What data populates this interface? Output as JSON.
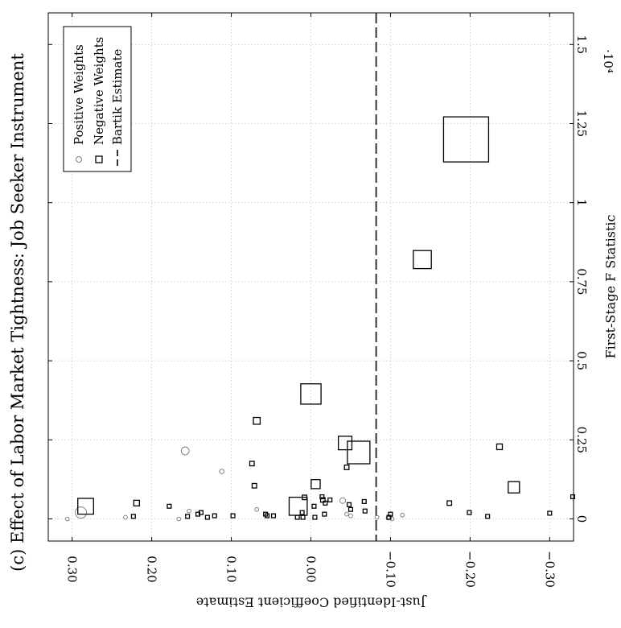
{
  "chart_data": {
    "type": "scatter",
    "orientation": "rotated-90",
    "title": "(c) Effect of Labor Market Tightness: Job Seeker Instrument",
    "xlabel": "First-Stage F Statistic",
    "ylabel": "Just-Identified Coefficient Estimate",
    "x_exponent_label": "·10⁴",
    "x_multiplier": 10000,
    "xlim": [
      -0.07,
      1.6
    ],
    "ylim": [
      -0.33,
      0.33
    ],
    "x_ticks": [
      0,
      0.25,
      0.5,
      0.75,
      1,
      1.25,
      1.5
    ],
    "x_tick_labels": [
      "0",
      "0.25",
      "0.5",
      "0.75",
      "1",
      "1.25",
      "1.5"
    ],
    "y_ticks": [
      0.3,
      0.2,
      0.1,
      0.0,
      -0.1,
      -0.2,
      -0.3
    ],
    "y_tick_labels": [
      "0.30",
      "0.20",
      "0.10",
      "0.00",
      "−0.10",
      "−0.20",
      "−0.30"
    ],
    "grid": true,
    "legend_position": "top-left",
    "legend": [
      "Positive Weights",
      "Negative Weights",
      "Bartik Estimate"
    ],
    "bartik_estimate": -0.082,
    "series": [
      {
        "name": "Positive Weights",
        "marker": "circle",
        "color": "#808080",
        "points": [
          {
            "x": 0.02,
            "y": 0.289,
            "size": 0.05
          },
          {
            "x": 0.215,
            "y": 0.158,
            "size": 0.035
          },
          {
            "x": 0.15,
            "y": 0.112,
            "size": 0.02
          },
          {
            "x": 0.058,
            "y": -0.04,
            "size": 0.025
          },
          {
            "x": 0.0,
            "y": 0.166,
            "size": 0.015
          },
          {
            "x": 0.005,
            "y": 0.233,
            "size": 0.01
          },
          {
            "x": 0.0,
            "y": 0.306,
            "size": 0.008
          },
          {
            "x": 0.025,
            "y": 0.153,
            "size": 0.008
          },
          {
            "x": 0.03,
            "y": 0.068,
            "size": 0.008
          },
          {
            "x": 0.01,
            "y": -0.05,
            "size": 0.008
          },
          {
            "x": 0.005,
            "y": -0.083,
            "size": 0.008
          },
          {
            "x": 0.015,
            "y": -0.045,
            "size": 0.006
          },
          {
            "x": 0.012,
            "y": -0.115,
            "size": 0.006
          },
          {
            "x": 0.003,
            "y": -0.097,
            "size": 0.006
          },
          {
            "x": 0.0,
            "y": -0.102,
            "size": 0.006
          }
        ]
      },
      {
        "name": "Negative Weights",
        "marker": "square",
        "color": "#000000",
        "points": [
          {
            "x": 1.2,
            "y": -0.195,
            "size": 0.2
          },
          {
            "x": 0.82,
            "y": -0.14,
            "size": 0.08
          },
          {
            "x": 0.395,
            "y": 0.0,
            "size": 0.09
          },
          {
            "x": 0.21,
            "y": -0.06,
            "size": 0.1
          },
          {
            "x": 0.24,
            "y": -0.043,
            "size": 0.06
          },
          {
            "x": 0.04,
            "y": 0.016,
            "size": 0.08
          },
          {
            "x": 0.04,
            "y": 0.283,
            "size": 0.07
          },
          {
            "x": 0.1,
            "y": -0.255,
            "size": 0.05
          },
          {
            "x": 0.11,
            "y": -0.006,
            "size": 0.04
          },
          {
            "x": 0.31,
            "y": 0.068,
            "size": 0.03
          },
          {
            "x": 0.228,
            "y": -0.237,
            "size": 0.025
          },
          {
            "x": 0.163,
            "y": -0.045,
            "size": 0.02
          },
          {
            "x": 0.175,
            "y": 0.074,
            "size": 0.02
          },
          {
            "x": 0.105,
            "y": 0.071,
            "size": 0.02
          },
          {
            "x": 0.05,
            "y": 0.219,
            "size": 0.025
          },
          {
            "x": 0.05,
            "y": -0.174,
            "size": 0.02
          },
          {
            "x": 0.068,
            "y": 0.008,
            "size": 0.02
          },
          {
            "x": 0.06,
            "y": -0.015,
            "size": 0.02
          },
          {
            "x": 0.07,
            "y": -0.014,
            "size": 0.015
          },
          {
            "x": 0.04,
            "y": -0.004,
            "size": 0.015
          },
          {
            "x": 0.02,
            "y": 0.011,
            "size": 0.015
          },
          {
            "x": 0.015,
            "y": 0.057,
            "size": 0.015
          },
          {
            "x": 0.01,
            "y": 0.047,
            "size": 0.015
          },
          {
            "x": 0.005,
            "y": 0.13,
            "size": 0.015
          },
          {
            "x": 0.02,
            "y": 0.138,
            "size": 0.015
          },
          {
            "x": 0.015,
            "y": 0.142,
            "size": 0.015
          },
          {
            "x": 0.008,
            "y": 0.155,
            "size": 0.015
          },
          {
            "x": 0.04,
            "y": 0.178,
            "size": 0.012
          },
          {
            "x": 0.005,
            "y": 0.01,
            "size": 0.012
          },
          {
            "x": 0.005,
            "y": -0.005,
            "size": 0.012
          },
          {
            "x": 0.06,
            "y": -0.024,
            "size": 0.012
          },
          {
            "x": 0.05,
            "y": -0.018,
            "size": 0.012
          },
          {
            "x": 0.03,
            "y": -0.05,
            "size": 0.012
          },
          {
            "x": 0.045,
            "y": -0.048,
            "size": 0.012
          },
          {
            "x": 0.055,
            "y": -0.067,
            "size": 0.012
          },
          {
            "x": 0.025,
            "y": -0.068,
            "size": 0.012
          },
          {
            "x": 0.015,
            "y": -0.017,
            "size": 0.012
          },
          {
            "x": 0.005,
            "y": 0.017,
            "size": 0.01
          },
          {
            "x": 0.01,
            "y": 0.055,
            "size": 0.01
          },
          {
            "x": 0.015,
            "y": -0.1,
            "size": 0.01
          },
          {
            "x": 0.005,
            "y": -0.098,
            "size": 0.01
          },
          {
            "x": 0.01,
            "y": 0.121,
            "size": 0.01
          },
          {
            "x": 0.008,
            "y": 0.223,
            "size": 0.01
          },
          {
            "x": 0.01,
            "y": 0.098,
            "size": 0.01
          },
          {
            "x": 0.018,
            "y": -0.3,
            "size": 0.01
          },
          {
            "x": 0.008,
            "y": -0.222,
            "size": 0.01
          },
          {
            "x": 0.02,
            "y": -0.199,
            "size": 0.01
          },
          {
            "x": 0.07,
            "y": -0.329,
            "size": 0.01
          }
        ]
      }
    ]
  }
}
